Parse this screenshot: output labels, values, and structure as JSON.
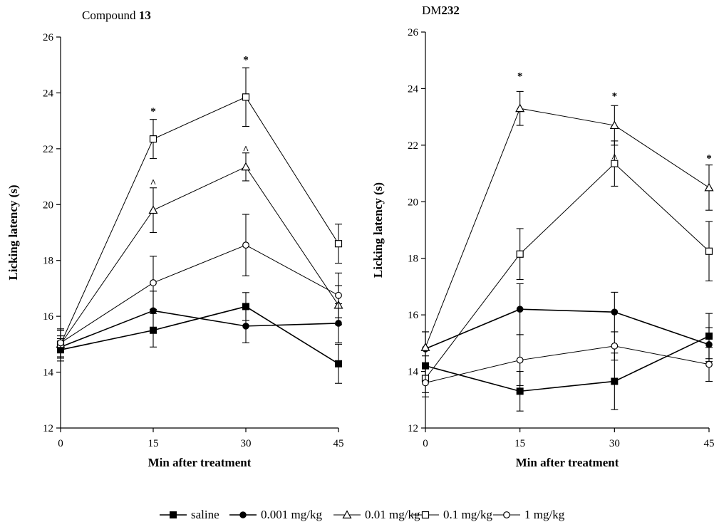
{
  "chart_data": [
    {
      "type": "line",
      "title": "Compound 13",
      "xlabel": "Min after treatment",
      "ylabel": "Licking latency (s)",
      "x": [
        0,
        15,
        30,
        45
      ],
      "xlim": [
        0,
        45
      ],
      "ylim": [
        12,
        26
      ],
      "yticks": [
        12,
        14,
        16,
        18,
        20,
        22,
        24,
        26
      ],
      "series": [
        {
          "name": "saline",
          "values": [
            14.8,
            15.5,
            16.35,
            14.3
          ],
          "errors": [
            0.4,
            0.6,
            0.5,
            0.7
          ]
        },
        {
          "name": "0.001 mg/kg",
          "values": [
            14.9,
            16.2,
            15.65,
            15.75
          ],
          "errors": [
            0.4,
            0.7,
            0.6,
            0.7
          ]
        },
        {
          "name": "0.01 mg/kg",
          "values": [
            15.0,
            19.8,
            21.35,
            16.4
          ],
          "errors": [
            0.5,
            0.8,
            0.5,
            0.7
          ]
        },
        {
          "name": "0.1 mg/kg",
          "values": [
            15.0,
            22.35,
            23.85,
            18.6
          ],
          "errors": [
            0.5,
            0.7,
            1.05,
            0.7
          ]
        },
        {
          "name": "1 mg/kg",
          "values": [
            15.05,
            17.2,
            18.55,
            16.75
          ],
          "errors": [
            0.5,
            0.95,
            1.1,
            0.8
          ]
        }
      ],
      "annotations": [
        {
          "x": 15,
          "y": 23.45,
          "text": "*"
        },
        {
          "x": 30,
          "y": 25.3,
          "text": "*"
        },
        {
          "x": 15,
          "y": 20.95,
          "text": "^"
        },
        {
          "x": 30,
          "y": 22.15,
          "text": "^"
        }
      ]
    },
    {
      "type": "line",
      "title": "DM232",
      "xlabel": "Min after treatment",
      "ylabel": "Licking latency (s)",
      "x": [
        0,
        15,
        30,
        45
      ],
      "xlim": [
        0,
        45
      ],
      "ylim": [
        12,
        26
      ],
      "yticks": [
        12,
        14,
        16,
        18,
        20,
        22,
        24,
        26
      ],
      "series": [
        {
          "name": "saline",
          "values": [
            14.2,
            13.3,
            13.65,
            15.25
          ],
          "errors": [
            0.35,
            0.7,
            1.0,
            0.8
          ]
        },
        {
          "name": "0.001 mg/kg",
          "values": [
            14.8,
            16.2,
            16.1,
            14.95
          ],
          "errors": [
            0.6,
            0.9,
            0.7,
            0.6
          ]
        },
        {
          "name": "0.01 mg/kg",
          "values": [
            14.85,
            23.3,
            22.7,
            20.5
          ],
          "errors": [
            0.55,
            0.6,
            0.7,
            0.8
          ]
        },
        {
          "name": "0.1 mg/kg",
          "values": [
            13.75,
            18.15,
            21.35,
            18.25
          ],
          "errors": [
            0.5,
            0.9,
            0.8,
            1.05
          ]
        },
        {
          "name": "1 mg/kg",
          "values": [
            13.6,
            14.4,
            14.9,
            14.25
          ],
          "errors": [
            0.5,
            0.9,
            0.5,
            0.6
          ]
        }
      ],
      "annotations": [
        {
          "x": 15,
          "y": 24.55,
          "text": "*"
        },
        {
          "x": 30,
          "y": 23.85,
          "text": "*"
        },
        {
          "x": 45,
          "y": 21.65,
          "text": "*"
        },
        {
          "x": 30,
          "y": 21.75,
          "text": "^"
        }
      ]
    }
  ],
  "legend": {
    "placement": "bottom",
    "items": [
      {
        "label": "saline",
        "marker": "filled-square"
      },
      {
        "label": "0.001 mg/kg",
        "marker": "filled-circle"
      },
      {
        "label": "0.01 mg/kg",
        "marker": "open-triangle"
      },
      {
        "label": "0.1 mg/kg",
        "marker": "open-square"
      },
      {
        "label": "1 mg/kg",
        "marker": "open-circle"
      }
    ]
  }
}
